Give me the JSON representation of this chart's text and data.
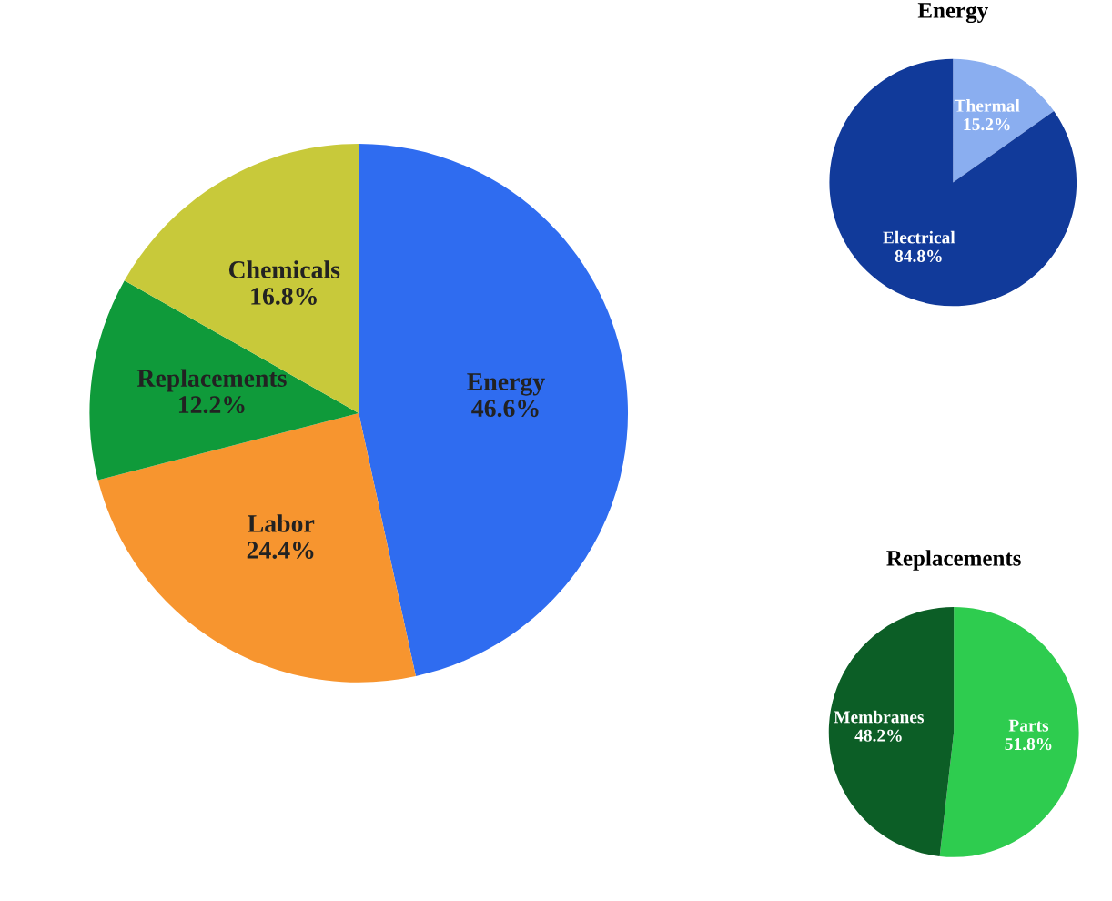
{
  "chart_data": [
    {
      "type": "pie",
      "categories": [
        "Energy",
        "Labor",
        "Replacements",
        "Chemicals"
      ],
      "values": [
        46.6,
        24.4,
        12.2,
        16.8
      ],
      "value_labels": [
        "46.6%",
        "24.4%",
        "12.2%",
        "16.8%"
      ],
      "colors": [
        "#2f6cf0",
        "#f7952f",
        "#0f9a3a",
        "#c8c93a"
      ]
    },
    {
      "type": "pie",
      "title": "Energy",
      "categories": [
        "Thermal",
        "Electrical"
      ],
      "values": [
        15.2,
        84.8
      ],
      "value_labels": [
        "15.2%",
        "84.8%"
      ],
      "colors": [
        "#8aaef0",
        "#113a9a"
      ]
    },
    {
      "type": "pie",
      "title": "Replacements",
      "categories": [
        "Parts",
        "Membranes"
      ],
      "values": [
        51.8,
        48.2
      ],
      "value_labels": [
        "51.8%",
        "48.2%"
      ],
      "colors": [
        "#2ecc4f",
        "#0c5e26"
      ]
    }
  ]
}
